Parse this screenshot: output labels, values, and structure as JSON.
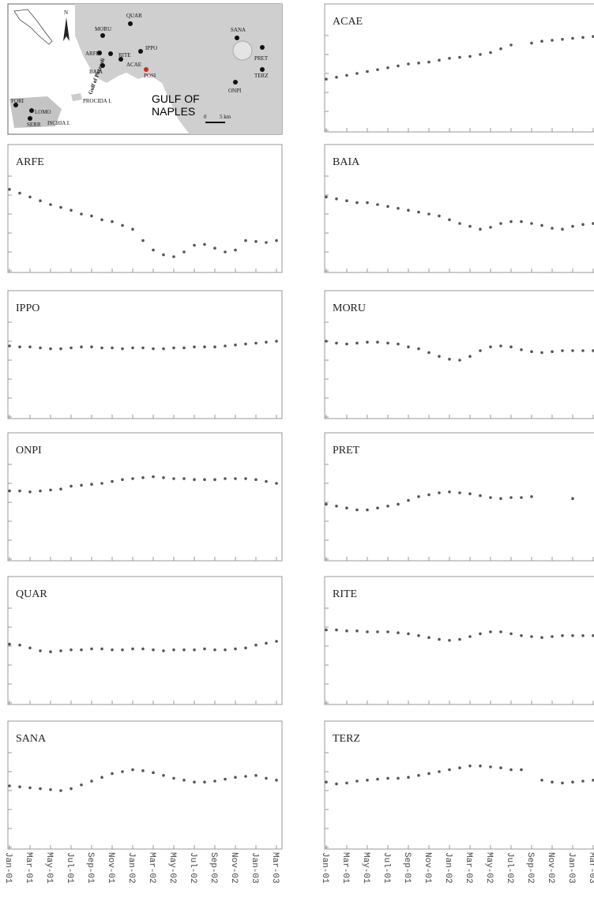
{
  "map": {
    "north": "N",
    "stations": [
      "QUAR",
      "MORU",
      "ARFE",
      "RITE",
      "IPPO",
      "BAIA",
      "ACAE",
      "POSI",
      "FORI",
      "LOMO",
      "SERR",
      "SANA",
      "PRET",
      "TERZ",
      "ONPI"
    ],
    "places": [
      "Gulf of Pozzuoli",
      "PROCIDA I.",
      "ISCHIA I."
    ],
    "gulf": [
      "GULF OF",
      "NAPLES"
    ],
    "scale": [
      "0",
      "5 km"
    ]
  },
  "chart_data": [
    {
      "type": "scatter",
      "title": "ACAE",
      "color": "#555",
      "ylim": [
        0,
        5
      ],
      "yticks": [
        0,
        1,
        2,
        3,
        4,
        5
      ],
      "values": [
        2.7,
        2.8,
        2.9,
        3.0,
        3.1,
        3.2,
        3.3,
        3.4,
        3.5,
        3.55,
        3.6,
        3.7,
        3.8,
        3.85,
        3.9,
        4.0,
        4.1,
        4.3,
        4.5,
        null,
        4.6,
        4.7,
        4.75,
        4.8,
        4.85,
        4.9,
        4.95
      ]
    },
    {
      "type": "scatter",
      "title": "ARFE",
      "color": "#555",
      "ylim": [
        0,
        5
      ],
      "yticks": [
        0,
        1,
        2,
        3,
        4,
        5
      ],
      "values": [
        4.3,
        4.1,
        3.9,
        3.7,
        3.5,
        3.35,
        3.2,
        3.0,
        2.9,
        2.7,
        2.6,
        2.4,
        2.2,
        1.6,
        1.1,
        0.85,
        0.75,
        1.0,
        1.35,
        1.4,
        1.2,
        1.0,
        1.1,
        1.6,
        1.55,
        1.5,
        1.6
      ]
    },
    {
      "type": "scatter",
      "title": "BAIA",
      "color": "#555",
      "ylim": [
        0,
        5
      ],
      "yticks": [
        0,
        1,
        2,
        3,
        4,
        5
      ],
      "values": [
        3.9,
        3.8,
        3.7,
        3.6,
        3.6,
        3.5,
        3.4,
        3.3,
        3.2,
        3.1,
        3.0,
        2.9,
        2.7,
        2.5,
        2.35,
        2.2,
        2.3,
        2.5,
        2.6,
        2.6,
        2.5,
        2.4,
        2.25,
        2.2,
        2.35,
        2.45,
        2.5
      ]
    },
    {
      "type": "scatter",
      "title": "IPPO",
      "color": "#555",
      "ylim": [
        0,
        5
      ],
      "yticks": [
        0,
        1,
        2,
        3,
        4,
        5
      ],
      "values": [
        3.75,
        3.7,
        3.7,
        3.65,
        3.6,
        3.6,
        3.65,
        3.7,
        3.7,
        3.65,
        3.65,
        3.6,
        3.65,
        3.65,
        3.6,
        3.6,
        3.65,
        3.65,
        3.7,
        3.7,
        3.7,
        3.75,
        3.8,
        3.85,
        3.9,
        3.95,
        4.0
      ]
    },
    {
      "type": "scatter",
      "title": "MORU",
      "color": "#555",
      "ylim": [
        0,
        5
      ],
      "yticks": [
        0,
        1,
        2,
        3,
        4,
        5
      ],
      "values": [
        4.0,
        3.9,
        3.85,
        3.9,
        3.95,
        3.95,
        3.9,
        3.85,
        3.7,
        3.6,
        3.4,
        3.2,
        3.05,
        3.0,
        3.2,
        3.5,
        3.7,
        3.75,
        3.7,
        3.55,
        3.45,
        3.4,
        3.45,
        3.5,
        3.5,
        3.5,
        3.5
      ]
    },
    {
      "type": "scatter",
      "title": "ONPI",
      "color": "#555",
      "ylim": [
        0,
        5
      ],
      "yticks": [
        0,
        1,
        2,
        3,
        4,
        5
      ],
      "values": [
        3.6,
        3.6,
        3.55,
        3.6,
        3.65,
        3.7,
        3.85,
        3.9,
        3.95,
        4.0,
        4.1,
        4.2,
        4.25,
        4.3,
        4.35,
        4.3,
        4.25,
        4.25,
        4.2,
        4.2,
        4.2,
        4.25,
        4.25,
        4.25,
        4.2,
        4.1,
        4.0
      ]
    },
    {
      "type": "scatter",
      "title": "PRET",
      "color": "#555",
      "ylim": [
        0,
        5
      ],
      "yticks": [
        0,
        1,
        2,
        3,
        4,
        5
      ],
      "values": [
        2.9,
        2.8,
        2.7,
        2.6,
        2.6,
        2.7,
        2.8,
        2.9,
        3.1,
        3.3,
        3.4,
        3.5,
        3.55,
        3.5,
        3.45,
        3.35,
        3.25,
        3.2,
        3.25,
        3.25,
        3.3,
        null,
        null,
        null,
        3.2,
        null,
        null
      ]
    },
    {
      "type": "scatter",
      "title": "QUAR",
      "color": "#555",
      "ylim": [
        0,
        5
      ],
      "yticks": [
        0,
        1,
        2,
        3,
        4,
        5
      ],
      "values": [
        3.1,
        3.05,
        2.9,
        2.75,
        2.7,
        2.75,
        2.8,
        2.8,
        2.85,
        2.85,
        2.8,
        2.8,
        2.85,
        2.85,
        2.8,
        2.75,
        2.8,
        2.8,
        2.8,
        2.85,
        2.8,
        2.8,
        2.85,
        2.9,
        3.05,
        3.15,
        3.25
      ]
    },
    {
      "type": "scatter",
      "title": "RITE",
      "color": "#555",
      "ylim": [
        0,
        5
      ],
      "yticks": [
        0,
        1,
        2,
        3,
        4,
        5
      ],
      "values": [
        3.85,
        3.85,
        3.8,
        3.8,
        3.75,
        3.75,
        3.75,
        3.7,
        3.65,
        3.55,
        3.45,
        3.35,
        3.3,
        3.35,
        3.5,
        3.65,
        3.75,
        3.75,
        3.65,
        3.55,
        3.5,
        3.45,
        3.5,
        3.55,
        3.55,
        3.55,
        3.55
      ]
    },
    {
      "type": "scatter",
      "title": "SANA",
      "color": "#555",
      "ylim": [
        0,
        5
      ],
      "yticks": [
        0,
        1,
        2,
        3,
        4,
        5
      ],
      "values": [
        3.25,
        3.2,
        3.15,
        3.1,
        3.05,
        3.0,
        3.1,
        3.3,
        3.5,
        3.7,
        3.9,
        4.0,
        4.1,
        4.05,
        3.95,
        3.8,
        3.65,
        3.55,
        3.45,
        3.45,
        3.5,
        3.6,
        3.7,
        3.75,
        3.8,
        3.65,
        3.55
      ],
      "categories": [
        "Jan-01",
        null,
        "Mar-01",
        null,
        "May-01",
        null,
        "Jul-01",
        null,
        "Sep-01",
        null,
        "Nov-01",
        null,
        "Jan-02",
        null,
        "Mar-02",
        null,
        "May-02",
        null,
        "Jul-02",
        null,
        "Sep-02",
        null,
        "Nov-02",
        null,
        "Jan-03",
        null,
        "Mar-03"
      ]
    },
    {
      "type": "scatter",
      "title": "TERZ",
      "color": "#555",
      "ylim": [
        0,
        5
      ],
      "yticks": [
        0,
        1,
        2,
        3,
        4,
        5
      ],
      "values": [
        3.45,
        3.35,
        3.4,
        3.5,
        3.55,
        3.6,
        3.65,
        3.65,
        3.7,
        3.8,
        3.9,
        4.0,
        4.1,
        4.2,
        4.3,
        4.3,
        4.25,
        4.2,
        4.1,
        4.1,
        null,
        3.55,
        3.45,
        3.4,
        3.45,
        3.5,
        3.55
      ],
      "categories": [
        "Jan-01",
        null,
        "Mar-01",
        null,
        "May-01",
        null,
        "Jul-01",
        null,
        "Sep-01",
        null,
        "Nov-01",
        null,
        "Jan-02",
        null,
        "Mar-02",
        null,
        "May-02",
        null,
        "Jul-02",
        null,
        "Sep-02",
        null,
        "Nov-02",
        null,
        "Jan-03",
        null,
        "Mar-03"
      ]
    }
  ]
}
